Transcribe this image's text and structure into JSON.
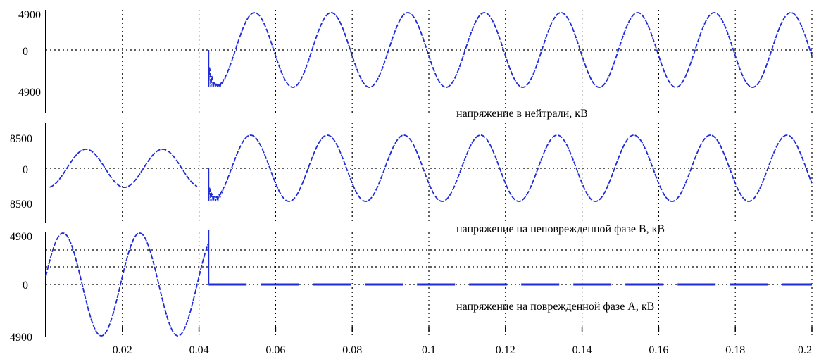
{
  "chart_data": [
    {
      "type": "line",
      "label": "напряжение в нейтрали, кВ",
      "yticks": [
        "4900",
        "0",
        "4900"
      ],
      "ylim": [
        -4900,
        4900
      ],
      "xlim": [
        0,
        0.2
      ],
      "color": "#1f2bd8",
      "series": [
        {
          "segments": [
            {
              "t_start": 0.0425,
              "t_end": 0.2,
              "amplitude": 4900,
              "period": 0.02,
              "phase_peak_t": 0.0545,
              "transient": true
            }
          ]
        }
      ]
    },
    {
      "type": "line",
      "label": "напряжение на неповрежденной фазе B, кВ",
      "yticks": [
        "8500",
        "0",
        "8500"
      ],
      "ylim": [
        -8500,
        8500
      ],
      "xlim": [
        0,
        0.2
      ],
      "color": "#1f2bd8",
      "series": [
        {
          "segments": [
            {
              "t_start": 0.001,
              "t_end": 0.0395,
              "amplitude": 4900,
              "period": 0.02,
              "phase_peak_t": 0.0105
            },
            {
              "t_start": 0.0425,
              "t_end": 0.2,
              "amplitude": 8500,
              "period": 0.02,
              "phase_peak_t": 0.0535,
              "transient": true
            }
          ]
        }
      ]
    },
    {
      "type": "line",
      "label": "напряжение на поврежденной фазе А, кВ",
      "yticks": [
        "4900",
        "0",
        "4900"
      ],
      "ylim": [
        -4900,
        4900
      ],
      "xlim": [
        0,
        0.2
      ],
      "color": "#1f2bd8",
      "series": [
        {
          "segments": [
            {
              "t_start": 0.0,
              "t_end": 0.0425,
              "amplitude": 4900,
              "period": 0.02,
              "phase_peak_t": 0.0045
            },
            {
              "t_start": 0.0425,
              "t_end": 0.2,
              "amplitude": 0,
              "period": 0.02,
              "phase_peak_t": 0.0
            }
          ]
        }
      ]
    }
  ],
  "x_axis": {
    "ticks": [
      {
        "v": 0.02,
        "text": "0.02"
      },
      {
        "v": 0.04,
        "text": "0.04"
      },
      {
        "v": 0.06,
        "text": "0.06"
      },
      {
        "v": 0.08,
        "text": "0.08"
      },
      {
        "v": 0.1,
        "text": "0.1"
      },
      {
        "v": 0.12,
        "text": "0.12"
      },
      {
        "v": 0.14,
        "text": "0.14"
      },
      {
        "v": 0.16,
        "text": "0.16"
      },
      {
        "v": 0.18,
        "text": "0.18"
      },
      {
        "v": 0.2,
        "text": "0.2"
      }
    ]
  }
}
